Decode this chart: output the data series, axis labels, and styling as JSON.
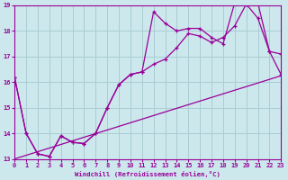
{
  "xlabel": "Windchill (Refroidissement éolien,°C)",
  "bg_color": "#cce8ec",
  "grid_color": "#aacdd4",
  "line_color": "#990099",
  "xmin": 0,
  "xmax": 23,
  "ymin": 13,
  "ymax": 19,
  "line1_x": [
    0,
    1,
    2,
    3,
    4,
    5,
    6,
    7,
    8,
    9,
    10,
    11,
    12,
    13,
    14,
    15,
    16,
    17,
    18,
    19,
    20,
    21,
    22,
    23
  ],
  "line1_y": [
    16.2,
    14.0,
    13.2,
    13.1,
    13.9,
    13.65,
    13.6,
    14.0,
    15.0,
    15.9,
    16.3,
    16.4,
    16.7,
    16.9,
    17.35,
    17.9,
    17.8,
    17.55,
    17.75,
    18.2,
    19.05,
    18.5,
    17.2,
    16.3
  ],
  "line2_x": [
    0,
    1,
    2,
    3,
    4,
    5,
    6,
    7,
    8,
    9,
    10,
    11,
    12,
    13,
    14,
    15,
    16,
    17,
    18,
    19,
    20,
    21,
    22,
    23
  ],
  "line2_y": [
    16.2,
    14.0,
    13.2,
    13.1,
    13.9,
    13.65,
    13.6,
    14.0,
    15.0,
    15.9,
    16.3,
    16.4,
    18.75,
    18.3,
    18.0,
    18.1,
    18.1,
    17.75,
    17.5,
    19.1,
    19.05,
    19.1,
    17.2,
    17.1
  ],
  "line3_x": [
    0,
    23
  ],
  "line3_y": [
    13.0,
    16.25
  ]
}
